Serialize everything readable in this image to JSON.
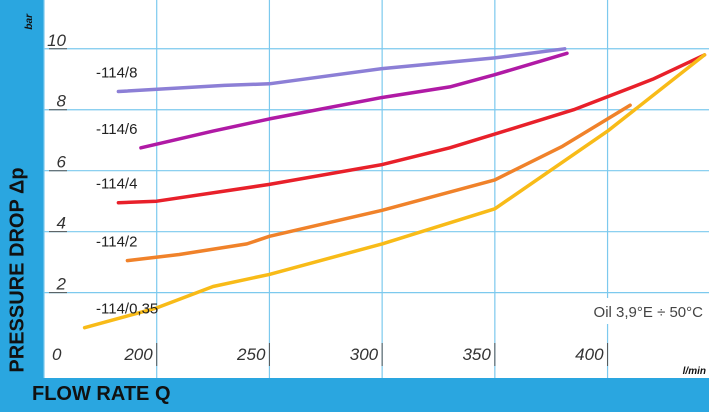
{
  "chart_data": {
    "type": "line",
    "xlabel": "FLOW RATE Q",
    "ylabel": "PRESSURE DROP Δp",
    "xunit": "l/min",
    "yunit": "bar",
    "xlim": [
      150,
      445
    ],
    "ylim": [
      -0.8,
      11.6
    ],
    "x_ticks": [
      "0",
      "200",
      "250",
      "300",
      "350",
      "400"
    ],
    "y_ticks": [
      "2",
      "4",
      "6",
      "8",
      "10"
    ],
    "annotation": "Oil 3,9°E ÷ 50°C",
    "series": [
      {
        "name": "-114/8",
        "color": "#8c7fd6",
        "points": [
          [
            183,
            8.6
          ],
          [
            230,
            8.8
          ],
          [
            250,
            8.85
          ],
          [
            300,
            9.35
          ],
          [
            350,
            9.7
          ],
          [
            381,
            10.0
          ]
        ]
      },
      {
        "name": "-114/6",
        "color": "#b01aa5",
        "points": [
          [
            193,
            6.75
          ],
          [
            225,
            7.3
          ],
          [
            250,
            7.7
          ],
          [
            300,
            8.4
          ],
          [
            330,
            8.75
          ],
          [
            350,
            9.15
          ],
          [
            382,
            9.85
          ]
        ]
      },
      {
        "name": "-114/4",
        "color": "#e8202a",
        "points": [
          [
            183,
            4.95
          ],
          [
            200,
            5.0
          ],
          [
            250,
            5.55
          ],
          [
            300,
            6.2
          ],
          [
            330,
            6.75
          ],
          [
            350,
            7.2
          ],
          [
            385,
            8.0
          ],
          [
            420,
            9.0
          ],
          [
            443,
            9.8
          ]
        ]
      },
      {
        "name": "-114/2",
        "color": "#f0822a",
        "points": [
          [
            187,
            3.05
          ],
          [
            210,
            3.25
          ],
          [
            240,
            3.6
          ],
          [
            250,
            3.85
          ],
          [
            300,
            4.7
          ],
          [
            350,
            5.7
          ],
          [
            380,
            6.8
          ],
          [
            410,
            8.15
          ]
        ]
      },
      {
        "name": "-114/0,35",
        "color": "#f8bb18",
        "points": [
          [
            168,
            0.85
          ],
          [
            200,
            1.5
          ],
          [
            225,
            2.2
          ],
          [
            250,
            2.6
          ],
          [
            300,
            3.6
          ],
          [
            350,
            4.75
          ],
          [
            400,
            7.3
          ],
          [
            443,
            9.8
          ]
        ]
      }
    ]
  }
}
